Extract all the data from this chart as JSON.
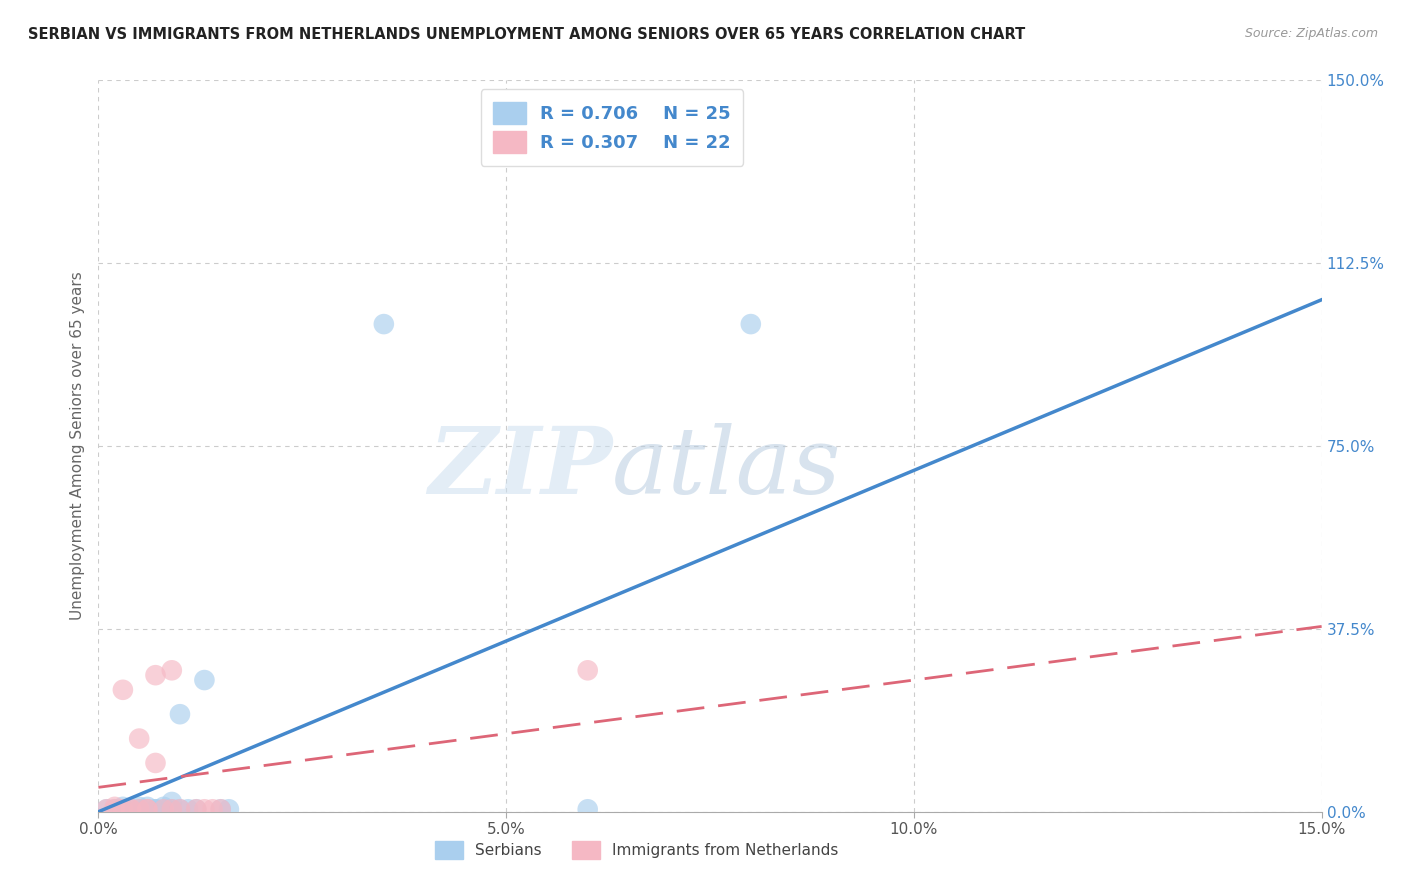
{
  "title": "SERBIAN VS IMMIGRANTS FROM NETHERLANDS UNEMPLOYMENT AMONG SENIORS OVER 65 YEARS CORRELATION CHART",
  "source": "Source: ZipAtlas.com",
  "ylabel": "Unemployment Among Seniors over 65 years",
  "xlim": [
    0.0,
    0.15
  ],
  "ylim": [
    0.0,
    1.5
  ],
  "xticks": [
    0.0,
    0.05,
    0.1,
    0.15
  ],
  "yticks": [
    0.0,
    0.375,
    0.75,
    1.125,
    1.5
  ],
  "ytick_labels": [
    "0.0%",
    "37.5%",
    "75.0%",
    "112.5%",
    "150.0%"
  ],
  "xtick_labels": [
    "0.0%",
    "5.0%",
    "10.0%",
    "15.0%"
  ],
  "legend_r1": "R = 0.706",
  "legend_n1": "N = 25",
  "legend_r2": "R = 0.307",
  "legend_n2": "N = 22",
  "legend_label1": "Serbians",
  "legend_label2": "Immigrants from Netherlands",
  "blue_color": "#aacfee",
  "pink_color": "#f5b8c4",
  "blue_line_color": "#4488cc",
  "pink_line_color": "#dd6677",
  "grid_color": "#cccccc",
  "watermark_zip": "ZIP",
  "watermark_atlas": "atlas",
  "blue_slope": 7.0,
  "blue_intercept": 0.0,
  "pink_slope": 2.2,
  "pink_intercept": 0.05,
  "serbian_x": [
    0.001,
    0.002,
    0.003,
    0.003,
    0.004,
    0.005,
    0.005,
    0.006,
    0.006,
    0.007,
    0.007,
    0.008,
    0.008,
    0.009,
    0.009,
    0.01,
    0.01,
    0.011,
    0.012,
    0.013,
    0.015,
    0.016,
    0.035,
    0.06,
    0.08
  ],
  "serbian_y": [
    0.005,
    0.005,
    0.005,
    0.01,
    0.005,
    0.005,
    0.01,
    0.005,
    0.01,
    0.005,
    0.005,
    0.005,
    0.01,
    0.005,
    0.02,
    0.2,
    0.005,
    0.005,
    0.005,
    0.27,
    0.005,
    0.005,
    1.0,
    0.005,
    1.0
  ],
  "netherlands_x": [
    0.001,
    0.002,
    0.002,
    0.003,
    0.003,
    0.004,
    0.004,
    0.005,
    0.005,
    0.006,
    0.006,
    0.007,
    0.007,
    0.008,
    0.009,
    0.009,
    0.01,
    0.012,
    0.013,
    0.014,
    0.015,
    0.06
  ],
  "netherlands_y": [
    0.005,
    0.005,
    0.01,
    0.005,
    0.25,
    0.005,
    0.005,
    0.005,
    0.15,
    0.005,
    0.005,
    0.1,
    0.28,
    0.005,
    0.005,
    0.29,
    0.005,
    0.005,
    0.005,
    0.005,
    0.005,
    0.29
  ]
}
